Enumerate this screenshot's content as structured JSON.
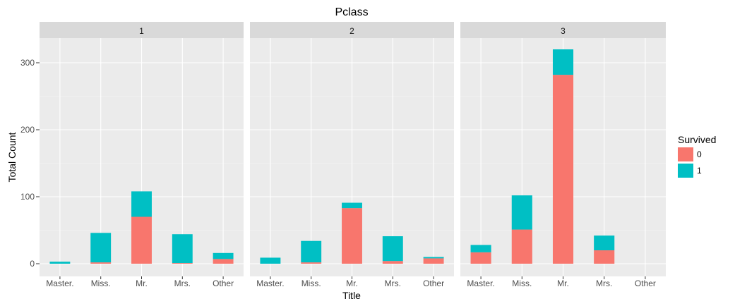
{
  "chart_data": {
    "type": "bar",
    "stacked": true,
    "title": "Pclass",
    "xlabel": "Title",
    "ylabel": "Total Count",
    "ylim": [
      0,
      340
    ],
    "y_ticks": [
      0,
      100,
      200,
      300
    ],
    "y_tick_labels": [
      "0",
      "100",
      "200",
      "300"
    ],
    "grid": true,
    "legend_position": "right",
    "legend": {
      "title": "Survived",
      "entries": [
        {
          "label": "0",
          "color": "#F8766D"
        },
        {
          "label": "1",
          "color": "#00BFC4"
        }
      ]
    },
    "categories": [
      "Master.",
      "Miss.",
      "Mr.",
      "Mrs.",
      "Other"
    ],
    "facets": [
      {
        "label": "1",
        "series": [
          {
            "name": "0",
            "values": [
              0,
              2,
              70,
              1,
              7
            ]
          },
          {
            "name": "1",
            "values": [
              3,
              44,
              38,
              43,
              9
            ]
          }
        ]
      },
      {
        "label": "2",
        "series": [
          {
            "name": "0",
            "values": [
              0,
              2,
              83,
              4,
              8
            ]
          },
          {
            "name": "1",
            "values": [
              9,
              32,
              8,
              37,
              2
            ]
          }
        ]
      },
      {
        "label": "3",
        "series": [
          {
            "name": "0",
            "values": [
              17,
              51,
              282,
              20,
              0
            ]
          },
          {
            "name": "1",
            "values": [
              11,
              51,
              38,
              22,
              0
            ]
          }
        ]
      }
    ]
  }
}
